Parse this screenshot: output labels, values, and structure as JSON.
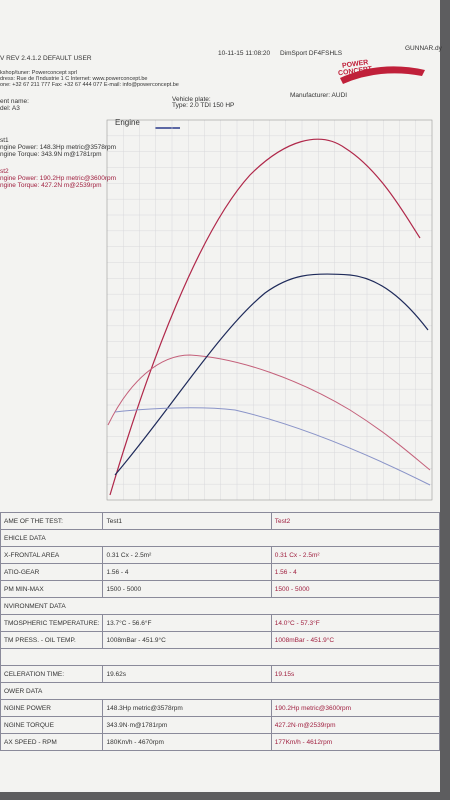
{
  "header": {
    "software": "V REV 2.4.1.2  DEFAULT USER",
    "datetime": "10-11-15 11:08:20",
    "device": "DimSport DF4FSHLS",
    "file": "GUNNAR.dy",
    "address": [
      "kshop/tuner: Powerconcept sprl",
      "dress: Rue de l'Industrie 1 C Internet: www.powerconcept.be",
      "one: +32 67 211 777 Fax: +32 67 444 077 E-mail: info@powerconcept.be"
    ],
    "logo_top": "POWER",
    "logo_bottom": "CONCEPT"
  },
  "vehicle": {
    "client": "ent name:",
    "model": "del: A3",
    "plate": "Vehicle plate:",
    "type": "Type: 2.0 TDI 150 HP",
    "manufacturer": "Manufacturer: AUDI"
  },
  "chart": {
    "title": "Engine",
    "legend": [
      {
        "name": "st1",
        "lines": [
          "ngine Power: 148.3Hp metric@3578rpm",
          "ngine Torque: 343.9N m@1781rpm"
        ]
      },
      {
        "name": "st2",
        "lines": [
          "ngine Power: 190.2Hp metric@3600rpm",
          "ngine Torque: 427.2N m@2539rpm"
        ]
      }
    ]
  },
  "table": {
    "rows": [
      [
        "AME OF THE TEST:",
        "Test1",
        "Test2"
      ],
      [
        "EHICLE DATA"
      ],
      [
        "X-FRONTAL AREA",
        "0.31 Cx - 2.5m²",
        "0.31 Cx - 2.5m²"
      ],
      [
        "ATIO-GEAR",
        "1.56 - 4",
        "1.56 - 4"
      ],
      [
        "PM MIN-MAX",
        "1500 - 5000",
        "1500 - 5000"
      ],
      [
        "NVIRONMENT DATA"
      ],
      [
        "TMOSPHERIC TEMPERATURE:",
        "13.7°C - 56.6°F",
        "14.0°C - 57.3°F"
      ],
      [
        "TM PRESS. - OIL TEMP.",
        "1008mBar - 451.9°C",
        "1008mBar - 451.9°C"
      ],
      [],
      [
        "CELERATION TIME:",
        "19.62s",
        "19.15s"
      ],
      [
        "OWER DATA"
      ],
      [
        "NGINE POWER",
        "148.3Hp metric@3578rpm",
        "190.2Hp metric@3600rpm"
      ],
      [
        "NGINE TORQUE",
        "343.9N·m@1781rpm",
        "427.2N·m@2539rpm"
      ],
      [
        "AX SPEED - RPM",
        "180Km/h - 4670rpm",
        "177Km/h - 4612rpm"
      ]
    ]
  }
}
